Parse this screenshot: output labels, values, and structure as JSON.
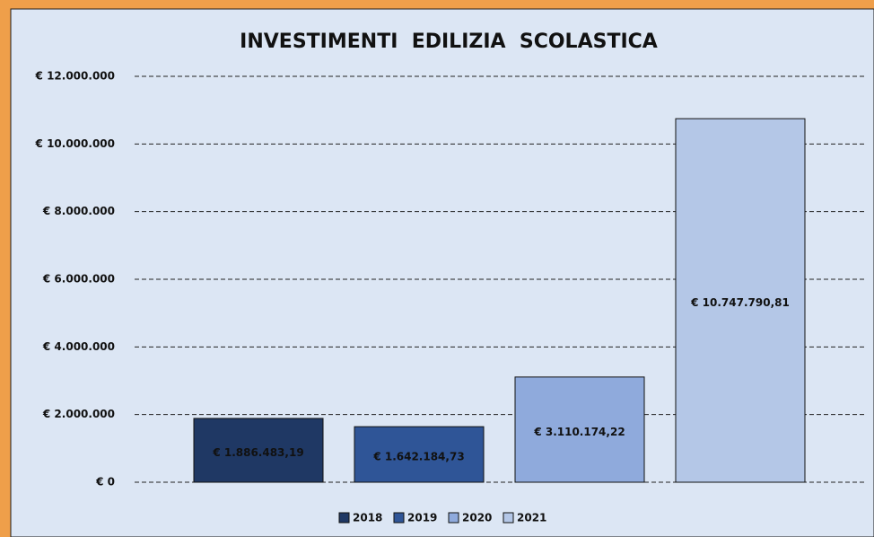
{
  "chart_data": {
    "type": "bar",
    "title": "INVESTIMENTI  EDILIZIA  SCOLASTICA",
    "series": [
      {
        "name": "2018",
        "color": "#1f3864",
        "values": [
          1886483.19
        ],
        "value_labels": [
          "€ 1.886.483,19"
        ]
      },
      {
        "name": "2019",
        "color": "#2f5597",
        "values": [
          1642184.73
        ],
        "value_labels": [
          "€ 1.642.184,73"
        ]
      },
      {
        "name": "2020",
        "color": "#8faadc",
        "values": [
          3110174.22
        ],
        "value_labels": [
          "€ 3.110.174,22"
        ]
      },
      {
        "name": "2021",
        "color": "#b4c7e7",
        "values": [
          10747790.81
        ],
        "value_labels": [
          "€ 10.747.790,81"
        ]
      }
    ],
    "ylim": [
      0,
      12000000
    ],
    "yticks": [
      {
        "value": 0,
        "label": "€ 0"
      },
      {
        "value": 2000000,
        "label": "€ 2.000.000"
      },
      {
        "value": 4000000,
        "label": "€ 4.000.000"
      },
      {
        "value": 6000000,
        "label": "€ 6.000.000"
      },
      {
        "value": 8000000,
        "label": "€ 8.000.000"
      },
      {
        "value": 10000000,
        "label": "€ 10.000.000"
      },
      {
        "value": 12000000,
        "label": "€ 12.000.000"
      }
    ],
    "grid": true,
    "legend": "bottom"
  }
}
